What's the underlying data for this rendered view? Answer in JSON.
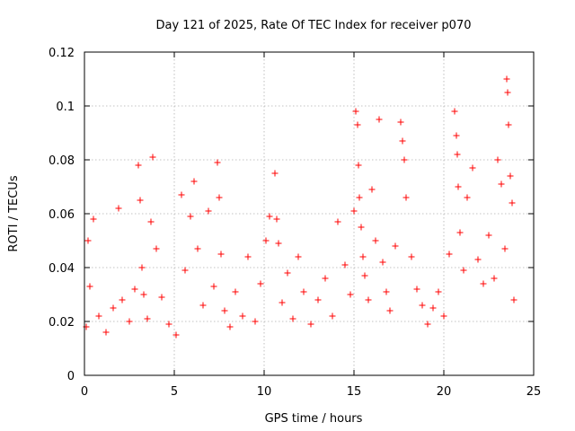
{
  "chart_data": {
    "type": "scatter",
    "title": "Day 121 of 2025, Rate Of TEC Index for receiver p070",
    "xlabel": "GPS time / hours",
    "ylabel": "ROTI / TECUs",
    "xlim": [
      0,
      25
    ],
    "ylim": [
      0,
      0.12
    ],
    "x_ticks": [
      0,
      5,
      10,
      15,
      20,
      25
    ],
    "x_tick_labels": [
      "0",
      "5",
      "10",
      "15",
      "20",
      "25"
    ],
    "y_ticks": [
      0,
      0.02,
      0.04,
      0.06,
      0.08,
      0.1,
      0.12
    ],
    "y_tick_labels": [
      "0",
      "0.02",
      "0.04",
      "0.06",
      "0.08",
      "0.1",
      "0.12"
    ],
    "grid": true,
    "marker": "+",
    "series": [
      {
        "name": "ROTI",
        "color": "#ff0000",
        "x": [
          0.1,
          0.2,
          0.3,
          0.5,
          0.8,
          1.2,
          1.6,
          1.9,
          2.1,
          2.5,
          2.8,
          3.0,
          3.1,
          3.2,
          3.3,
          3.5,
          3.7,
          3.8,
          4.0,
          4.3,
          4.7,
          5.1,
          5.4,
          5.6,
          5.9,
          6.1,
          6.3,
          6.6,
          6.9,
          7.2,
          7.4,
          7.5,
          7.6,
          7.8,
          8.1,
          8.4,
          8.8,
          9.1,
          9.5,
          9.8,
          10.1,
          10.3,
          10.6,
          10.7,
          10.8,
          11.0,
          11.3,
          11.6,
          11.9,
          12.2,
          12.6,
          13.0,
          13.4,
          13.8,
          14.1,
          14.5,
          14.8,
          15.0,
          15.1,
          15.2,
          15.25,
          15.3,
          15.4,
          15.5,
          15.6,
          15.8,
          16.0,
          16.2,
          16.4,
          16.6,
          16.8,
          17.0,
          17.3,
          17.6,
          17.7,
          17.8,
          17.9,
          18.2,
          18.5,
          18.8,
          19.1,
          19.4,
          19.7,
          20.0,
          20.3,
          20.6,
          20.7,
          20.75,
          20.8,
          20.9,
          21.1,
          21.3,
          21.6,
          21.9,
          22.2,
          22.5,
          22.8,
          23.0,
          23.2,
          23.4,
          23.5,
          23.55,
          23.6,
          23.7,
          23.8,
          23.9
        ],
        "y": [
          0.018,
          0.05,
          0.033,
          0.058,
          0.022,
          0.016,
          0.025,
          0.062,
          0.028,
          0.02,
          0.032,
          0.078,
          0.065,
          0.04,
          0.03,
          0.021,
          0.057,
          0.081,
          0.047,
          0.029,
          0.019,
          0.015,
          0.067,
          0.039,
          0.059,
          0.072,
          0.047,
          0.026,
          0.061,
          0.033,
          0.079,
          0.066,
          0.045,
          0.024,
          0.018,
          0.031,
          0.022,
          0.044,
          0.02,
          0.034,
          0.05,
          0.059,
          0.075,
          0.058,
          0.049,
          0.027,
          0.038,
          0.021,
          0.044,
          0.031,
          0.019,
          0.028,
          0.036,
          0.022,
          0.057,
          0.041,
          0.03,
          0.061,
          0.098,
          0.093,
          0.078,
          0.066,
          0.055,
          0.044,
          0.037,
          0.028,
          0.069,
          0.05,
          0.095,
          0.042,
          0.031,
          0.024,
          0.048,
          0.094,
          0.087,
          0.08,
          0.066,
          0.044,
          0.032,
          0.026,
          0.019,
          0.025,
          0.031,
          0.022,
          0.045,
          0.098,
          0.089,
          0.082,
          0.07,
          0.053,
          0.039,
          0.066,
          0.077,
          0.043,
          0.034,
          0.052,
          0.036,
          0.08,
          0.071,
          0.047,
          0.11,
          0.105,
          0.093,
          0.074,
          0.064,
          0.028
        ]
      }
    ]
  }
}
